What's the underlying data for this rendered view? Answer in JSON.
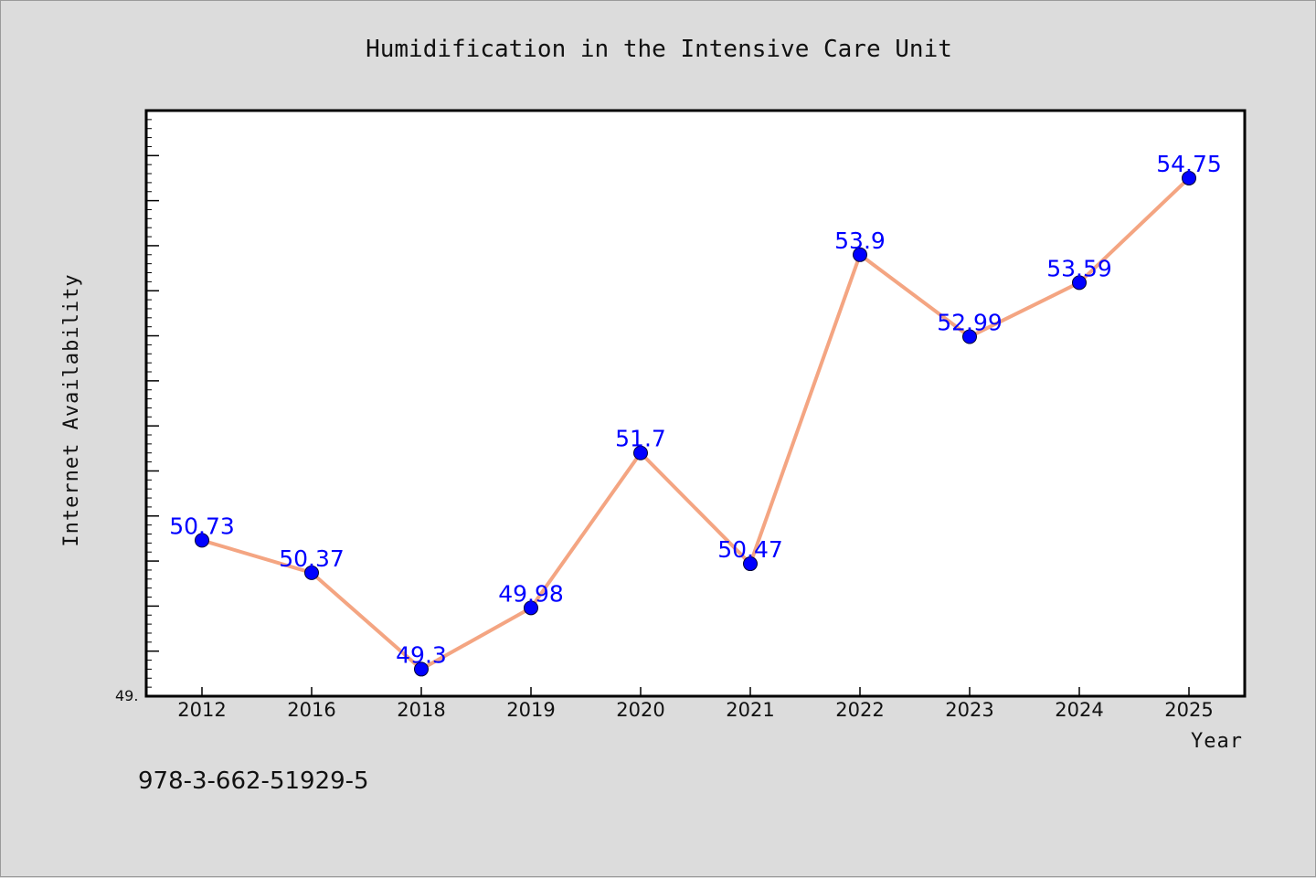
{
  "chart_data": {
    "type": "line",
    "title": "Humidification in the Intensive Care Unit",
    "xlabel": "Year",
    "ylabel": "Internet Availability",
    "categories": [
      "2012",
      "2016",
      "2018",
      "2019",
      "2020",
      "2021",
      "2022",
      "2023",
      "2024",
      "2025"
    ],
    "series": [
      {
        "values": [
          50.73,
          50.37,
          49.3,
          49.98,
          51.7,
          50.47,
          53.9,
          52.99,
          53.59,
          54.75
        ]
      }
    ],
    "data_labels": [
      "50.73",
      "50.37",
      "49.3",
      "49.98",
      "51.7",
      "50.47",
      "53.9",
      "52.99",
      "53.59",
      "54.75"
    ],
    "ylim": [
      49.0,
      55.5
    ],
    "y_tick_label": "49.",
    "y_minor_ticks": 13,
    "grid": false,
    "line_color": "#f4a582",
    "marker_color": "#0000ff"
  },
  "footer": {
    "isbn": "978-3-662-51929-5"
  }
}
